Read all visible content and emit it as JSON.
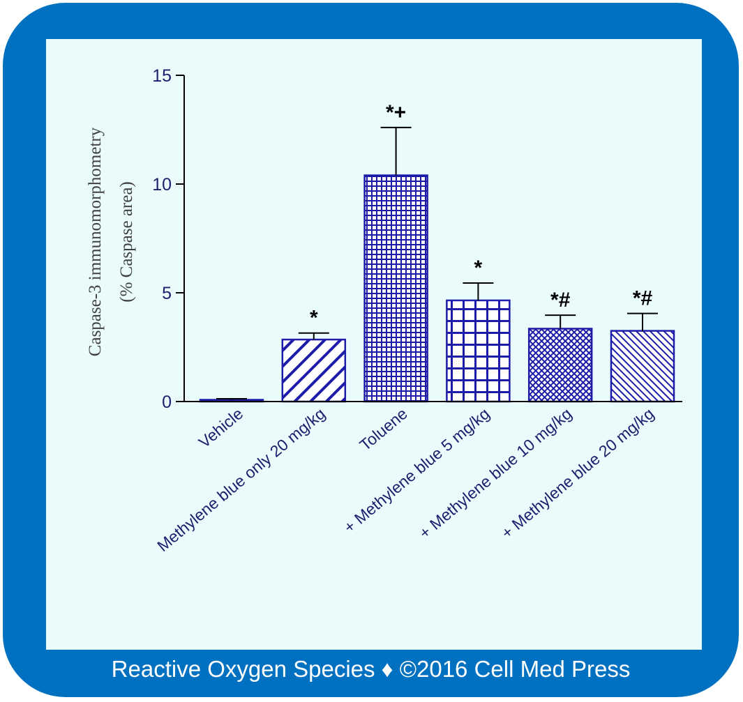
{
  "footer_text": "Reactive Oxygen Species ♦ ©2016 Cell Med Press",
  "colors": {
    "frame": "#0070C0",
    "panel": "#E9FBFB",
    "bar": "#1C1CA8",
    "axis": "#000000",
    "axis_title": "#404040",
    "tick_label": "#1E1E6E"
  },
  "chart_data": {
    "type": "bar",
    "title": "",
    "ylabel": "Caspase-3 immunomorphometry",
    "ylabel_sub": "(% Caspase area)",
    "xlabel": "",
    "ylim": [
      0,
      15
    ],
    "yticks": [
      0,
      5,
      10,
      15
    ],
    "grid": false,
    "categories": [
      "Vehicle",
      "Methylene blue only 20 mg/kg",
      "Toluene",
      "+ Methylene blue 5 mg/kg",
      "+ Methylene blue 10 mg/kg",
      "+ Methylene blue 20 mg/kg"
    ],
    "values": [
      0.08,
      2.85,
      10.4,
      4.65,
      3.35,
      3.25
    ],
    "errors": [
      0.05,
      0.3,
      2.2,
      0.8,
      0.62,
      0.8
    ],
    "patterns": [
      "solid",
      "diagonal-wide",
      "fine-grid",
      "coarse-grid",
      "crosshatch",
      "diagonal-fine"
    ],
    "annotations": [
      "",
      "*",
      "*+",
      "*",
      "*#",
      "*#"
    ]
  }
}
